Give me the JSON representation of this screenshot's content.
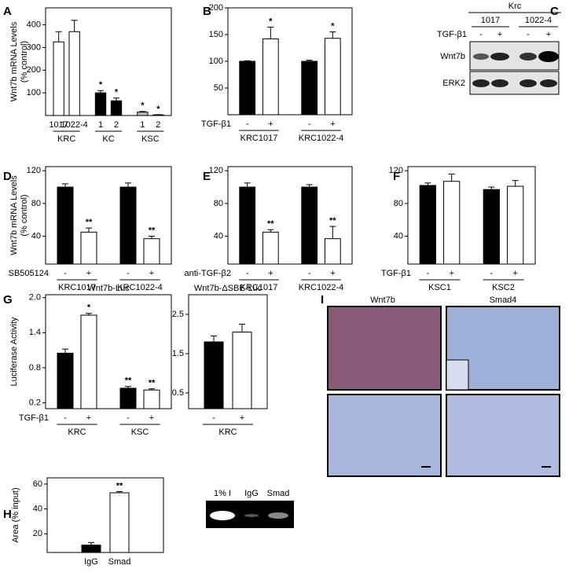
{
  "chart_data": [
    {
      "type": "bar",
      "panel": "A",
      "ylabel": [
        "Wnt7b mRNA Levels",
        "(% control)"
      ],
      "ylim": [
        0,
        475
      ],
      "yticks": [
        100,
        200,
        300,
        400
      ],
      "categories": [
        "1017",
        "1022-4",
        "1",
        "2",
        "1",
        "2"
      ],
      "groups": [
        "KRC",
        "KC",
        "KSC"
      ],
      "values": [
        325,
        370,
        100,
        65,
        15,
        3
      ],
      "errors": [
        45,
        50,
        10,
        12,
        3,
        1
      ],
      "colors": [
        "#ffffff",
        "#ffffff",
        "#000000",
        "#000000",
        "#bbbbbb",
        "#bbbbbb"
      ],
      "stars": [
        null,
        null,
        "*",
        "*",
        "*",
        "*"
      ]
    },
    {
      "type": "bar",
      "panel": "B",
      "ylim": [
        0,
        200
      ],
      "yticks": [
        50,
        100,
        150,
        200
      ],
      "treatment": "TGF-β1",
      "categories": [
        "-",
        "+",
        "-",
        "+"
      ],
      "groups": [
        "KRC1017",
        "KRC1022-4"
      ],
      "values": [
        100,
        142,
        100,
        143
      ],
      "errors": [
        1,
        22,
        2,
        12
      ],
      "colors": [
        "#000000",
        "#ffffff",
        "#000000",
        "#ffffff"
      ],
      "stars": [
        null,
        "*",
        null,
        "*"
      ]
    },
    {
      "type": "bar",
      "panel": "D",
      "ylabel": [
        "Wnt7b mRNA Levels",
        "(% control)"
      ],
      "ylim": [
        6,
        125
      ],
      "yticks": [
        40,
        80,
        120
      ],
      "treatment": "SB505124",
      "categories": [
        "-",
        "+",
        "-",
        "+"
      ],
      "groups": [
        "KRC1017",
        "KRC1022-4"
      ],
      "values": [
        100,
        45,
        100,
        37
      ],
      "errors": [
        4,
        5,
        5,
        3
      ],
      "colors": [
        "#000000",
        "#ffffff",
        "#000000",
        "#ffffff"
      ],
      "stars": [
        null,
        "**",
        null,
        "**"
      ]
    },
    {
      "type": "bar",
      "panel": "E",
      "ylim": [
        6,
        125
      ],
      "yticks": [
        40,
        80,
        120
      ],
      "treatment": "anti-TGF-β2",
      "categories": [
        "-",
        "+",
        "-",
        "+"
      ],
      "groups": [
        "KRC1017",
        "KRC1022-4"
      ],
      "values": [
        100,
        45,
        100,
        37
      ],
      "errors": [
        5,
        3,
        3,
        15
      ],
      "colors": [
        "#000000",
        "#ffffff",
        "#000000",
        "#ffffff"
      ],
      "stars": [
        null,
        "**",
        null,
        "**"
      ]
    },
    {
      "type": "bar",
      "panel": "F",
      "ylim": [
        6,
        125
      ],
      "yticks": [
        40,
        80,
        120
      ],
      "treatment": "TGF-β1",
      "categories": [
        "-",
        "+",
        "-",
        "+"
      ],
      "groups": [
        "KSC1",
        "KSC2"
      ],
      "values": [
        102,
        107,
        97,
        101
      ],
      "errors": [
        3,
        9,
        3,
        7
      ],
      "colors": [
        "#000000",
        "#ffffff",
        "#000000",
        "#ffffff"
      ]
    },
    {
      "type": "bar",
      "panel": "G",
      "title": "Wnt7b-Luc",
      "ylabel": [
        "Luciferase Activity"
      ],
      "ylim": [
        0.1,
        2.05
      ],
      "yticks": [
        0.2,
        0.8,
        1.4,
        {
          "value": 2,
          "label": "2.0"
        }
      ],
      "treatment": "TGF-β1",
      "categories": [
        "-",
        "+",
        "-",
        "+"
      ],
      "groups": [
        "KRC",
        "KSC"
      ],
      "values": [
        1.05,
        1.7,
        0.45,
        0.42
      ],
      "errors": [
        0.07,
        0.03,
        0.03,
        0.02
      ],
      "colors": [
        "#000000",
        "#ffffff",
        "#000000",
        "#ffffff"
      ],
      "stars": [
        null,
        "*",
        "**",
        "**"
      ]
    },
    {
      "type": "bar",
      "title": "Wnt7b-ΔSBE-Luc",
      "ylim": [
        0.1,
        3.0
      ],
      "yticks": [
        0.5,
        1.5,
        2.5
      ],
      "categories": [
        "-",
        "+"
      ],
      "groups": [
        "KRC"
      ],
      "values": [
        1.8,
        2.05
      ],
      "errors": [
        0.15,
        0.2
      ],
      "colors": [
        "#000000",
        "#ffffff"
      ]
    },
    {
      "type": "bar",
      "panel": "H",
      "ylabel": [
        "Area (% input)"
      ],
      "ylim": [
        5,
        65
      ],
      "yticks": [
        20,
        40,
        60
      ],
      "categories": [
        "IgG",
        "Smad"
      ],
      "values": [
        11,
        53
      ],
      "errors": [
        2,
        1
      ],
      "colors": [
        "#000000",
        "#ffffff"
      ],
      "stars": [
        null,
        "**"
      ]
    }
  ],
  "blot": {
    "panel": "C",
    "title": "Krc",
    "lanes": [
      "1017",
      "1022-4"
    ],
    "treatment": "TGF-β1",
    "signs": [
      "-",
      "+",
      "-",
      "+"
    ],
    "rows": [
      "Wnt7b",
      "ERK2"
    ]
  },
  "histology": {
    "panel": "I",
    "columns": [
      "Wnt7b",
      "Smad4"
    ]
  },
  "gel": {
    "lanes": [
      "1% I",
      "IgG",
      "Smad"
    ]
  }
}
